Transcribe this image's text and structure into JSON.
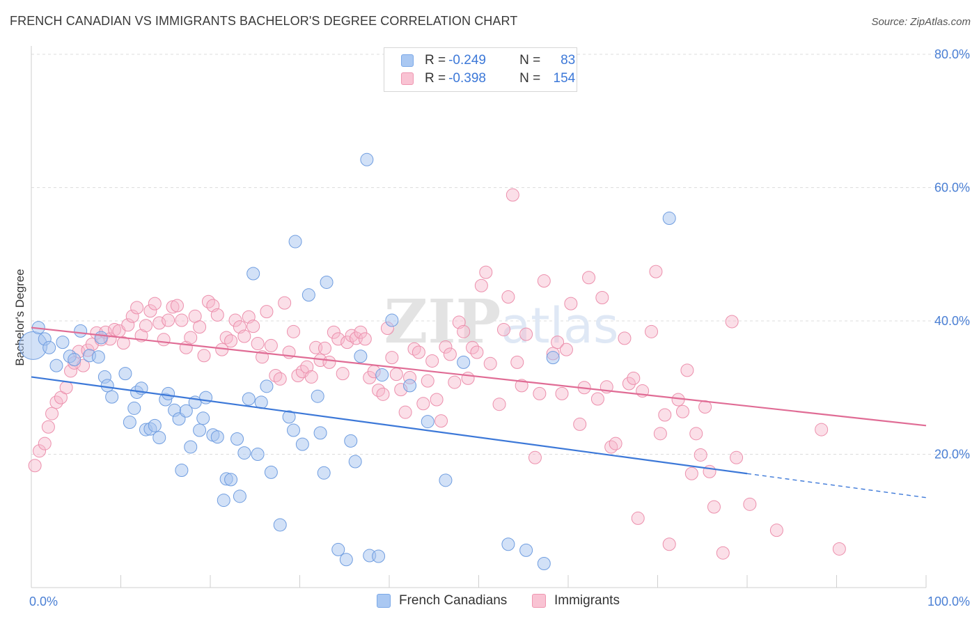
{
  "title": "FRENCH CANADIAN VS IMMIGRANTS BACHELOR'S DEGREE CORRELATION CHART",
  "source": "Source: ZipAtlas.com",
  "watermark": "ZIPatlas",
  "legend": {
    "rows": [
      {
        "r_label": "R =",
        "r_value": "-0.249",
        "n_label": "N =",
        "n_value": "83",
        "color": "#aac8f2",
        "border": "#7aa8e8"
      },
      {
        "r_label": "R =",
        "r_value": "-0.398",
        "n_label": "N =",
        "n_value": "154",
        "color": "#f9c3d3",
        "border": "#ef95b0"
      }
    ]
  },
  "bottom_legend": [
    {
      "label": "French Canadians",
      "color": "#aac8f2",
      "border": "#7aa8e8"
    },
    {
      "label": "Immigrants",
      "color": "#f9c3d3",
      "border": "#ef95b0"
    }
  ],
  "chart_data": {
    "type": "scatter",
    "title": "FRENCH CANADIAN VS IMMIGRANTS BACHELOR'S DEGREE CORRELATION CHART",
    "xlabel": "",
    "ylabel": "Bachelor's Degree",
    "xlim": [
      0,
      100
    ],
    "ylim": [
      0,
      80
    ],
    "x_tick_labels": [
      "0.0%",
      "100.0%"
    ],
    "y_ticks": [
      20,
      40,
      60,
      80
    ],
    "y_tick_labels": [
      "20.0%",
      "40.0%",
      "60.0%",
      "80.0%"
    ],
    "grid": true,
    "colors": {
      "french": "#3c78d8",
      "immigrants": "#e06c95"
    },
    "series": [
      {
        "name": "French Canadians",
        "trend": {
          "x0": 0,
          "y0": 31.6,
          "x1": 80,
          "y1": 17.1,
          "dashed_to_x": 100,
          "dashed_to_y": 13.5
        },
        "points": [
          [
            0.2,
            36.3,
            "L"
          ],
          [
            0.8,
            39.0
          ],
          [
            1.5,
            37.3
          ],
          [
            2.8,
            33.3
          ],
          [
            2.0,
            36.0
          ],
          [
            3.5,
            36.8
          ],
          [
            4.3,
            34.7
          ],
          [
            4.8,
            34.2
          ],
          [
            5.5,
            38.5
          ],
          [
            6.5,
            34.8
          ],
          [
            7.5,
            34.6
          ],
          [
            7.8,
            37.5
          ],
          [
            8.2,
            31.6
          ],
          [
            8.5,
            30.3
          ],
          [
            9.0,
            28.6
          ],
          [
            10.5,
            32.1
          ],
          [
            11.0,
            24.8
          ],
          [
            11.5,
            26.9
          ],
          [
            11.8,
            29.3
          ],
          [
            12.3,
            29.9
          ],
          [
            12.8,
            23.7
          ],
          [
            13.3,
            23.8
          ],
          [
            13.8,
            24.3
          ],
          [
            14.3,
            22.5
          ],
          [
            15.0,
            28.2
          ],
          [
            15.3,
            29.1
          ],
          [
            16.0,
            26.6
          ],
          [
            16.5,
            25.3
          ],
          [
            16.8,
            17.6
          ],
          [
            17.3,
            26.5
          ],
          [
            17.8,
            21.1
          ],
          [
            18.3,
            27.8
          ],
          [
            18.8,
            23.6
          ],
          [
            19.2,
            25.4
          ],
          [
            19.5,
            28.5
          ],
          [
            20.3,
            22.9
          ],
          [
            20.8,
            22.6
          ],
          [
            21.5,
            13.1
          ],
          [
            21.8,
            16.3
          ],
          [
            22.3,
            16.2
          ],
          [
            23.0,
            22.3
          ],
          [
            23.3,
            13.7
          ],
          [
            23.8,
            20.2
          ],
          [
            24.3,
            28.3
          ],
          [
            24.8,
            47.1
          ],
          [
            25.3,
            20.0
          ],
          [
            25.7,
            27.8
          ],
          [
            26.3,
            30.2
          ],
          [
            26.8,
            17.3
          ],
          [
            27.8,
            9.4
          ],
          [
            28.8,
            25.6
          ],
          [
            29.3,
            23.6
          ],
          [
            29.5,
            51.9
          ],
          [
            30.3,
            21.5
          ],
          [
            31.0,
            43.9
          ],
          [
            32.0,
            28.7
          ],
          [
            32.3,
            23.2
          ],
          [
            32.7,
            17.2
          ],
          [
            33.0,
            45.8
          ],
          [
            34.3,
            5.7
          ],
          [
            35.2,
            4.2
          ],
          [
            35.7,
            22.0
          ],
          [
            36.2,
            18.9
          ],
          [
            36.8,
            34.7
          ],
          [
            37.5,
            64.2
          ],
          [
            37.8,
            4.8
          ],
          [
            38.8,
            4.7
          ],
          [
            39.2,
            31.9
          ],
          [
            40.3,
            40.1
          ],
          [
            42.3,
            30.3
          ],
          [
            44.3,
            24.9
          ],
          [
            46.3,
            16.1
          ],
          [
            48.3,
            33.8
          ],
          [
            53.3,
            6.5
          ],
          [
            55.3,
            5.6
          ],
          [
            57.3,
            3.6
          ],
          [
            58.3,
            34.5
          ],
          [
            71.3,
            55.4
          ]
        ]
      },
      {
        "name": "Immigrants",
        "trend": {
          "x0": 0,
          "y0": 39.0,
          "x1": 100,
          "y1": 24.3
        },
        "points": [
          [
            0.4,
            18.3
          ],
          [
            0.9,
            20.5
          ],
          [
            1.5,
            21.6
          ],
          [
            1.9,
            24.1
          ],
          [
            2.3,
            26.1
          ],
          [
            2.8,
            27.8
          ],
          [
            3.3,
            28.5
          ],
          [
            3.9,
            30.0
          ],
          [
            4.4,
            32.5
          ],
          [
            4.8,
            33.7
          ],
          [
            5.3,
            35.4
          ],
          [
            5.8,
            33.3
          ],
          [
            6.3,
            35.6
          ],
          [
            6.8,
            36.5
          ],
          [
            7.3,
            38.2
          ],
          [
            7.8,
            37.2
          ],
          [
            8.3,
            38.3
          ],
          [
            8.8,
            37.3
          ],
          [
            9.3,
            38.7
          ],
          [
            9.8,
            38.5
          ],
          [
            10.3,
            36.7
          ],
          [
            10.8,
            39.4
          ],
          [
            11.3,
            40.7
          ],
          [
            11.8,
            42.0
          ],
          [
            12.3,
            37.8
          ],
          [
            12.8,
            39.3
          ],
          [
            13.3,
            41.5
          ],
          [
            13.8,
            42.6
          ],
          [
            14.3,
            39.7
          ],
          [
            14.8,
            37.2
          ],
          [
            15.3,
            40.1
          ],
          [
            15.8,
            42.1
          ],
          [
            16.3,
            42.3
          ],
          [
            16.8,
            40.1
          ],
          [
            17.3,
            36.0
          ],
          [
            17.8,
            37.5
          ],
          [
            18.3,
            40.7
          ],
          [
            18.8,
            39.1
          ],
          [
            19.3,
            34.8
          ],
          [
            19.8,
            42.9
          ],
          [
            20.3,
            42.3
          ],
          [
            20.8,
            40.9
          ],
          [
            21.3,
            35.7
          ],
          [
            21.8,
            37.5
          ],
          [
            22.3,
            37.0
          ],
          [
            22.8,
            40.1
          ],
          [
            23.3,
            39.1
          ],
          [
            23.8,
            37.7
          ],
          [
            24.3,
            40.6
          ],
          [
            24.8,
            39.2
          ],
          [
            25.3,
            36.6
          ],
          [
            25.8,
            34.6
          ],
          [
            26.3,
            41.4
          ],
          [
            26.8,
            36.3
          ],
          [
            27.3,
            31.8
          ],
          [
            27.8,
            31.3
          ],
          [
            28.3,
            42.7
          ],
          [
            28.8,
            35.3
          ],
          [
            29.3,
            38.4
          ],
          [
            29.8,
            31.8
          ],
          [
            30.3,
            32.4
          ],
          [
            30.8,
            33.1
          ],
          [
            31.3,
            31.6
          ],
          [
            31.8,
            36.0
          ],
          [
            32.3,
            34.1
          ],
          [
            32.8,
            35.9
          ],
          [
            33.3,
            33.8
          ],
          [
            33.8,
            38.3
          ],
          [
            34.3,
            37.3
          ],
          [
            34.8,
            32.1
          ],
          [
            35.3,
            36.8
          ],
          [
            35.8,
            37.8
          ],
          [
            36.3,
            37.4
          ],
          [
            36.8,
            38.3
          ],
          [
            37.3,
            37.3
          ],
          [
            37.8,
            31.5
          ],
          [
            38.3,
            32.4
          ],
          [
            38.8,
            29.6
          ],
          [
            39.3,
            29.0
          ],
          [
            39.8,
            38.9
          ],
          [
            40.3,
            34.5
          ],
          [
            40.8,
            32.0
          ],
          [
            41.3,
            29.7
          ],
          [
            41.8,
            26.3
          ],
          [
            42.3,
            31.5
          ],
          [
            42.8,
            35.8
          ],
          [
            43.3,
            35.3
          ],
          [
            43.8,
            27.6
          ],
          [
            44.3,
            31.0
          ],
          [
            44.8,
            34.0
          ],
          [
            45.3,
            28.2
          ],
          [
            45.8,
            25.0
          ],
          [
            46.3,
            36.1
          ],
          [
            46.8,
            35.0
          ],
          [
            47.3,
            30.8
          ],
          [
            47.8,
            39.8
          ],
          [
            48.3,
            38.4
          ],
          [
            48.8,
            31.4
          ],
          [
            49.3,
            36.0
          ],
          [
            49.8,
            35.3
          ],
          [
            50.3,
            45.3
          ],
          [
            50.8,
            47.3
          ],
          [
            51.3,
            33.6
          ],
          [
            52.3,
            27.5
          ],
          [
            52.8,
            38.7
          ],
          [
            53.3,
            43.6
          ],
          [
            53.8,
            58.9
          ],
          [
            54.3,
            33.8
          ],
          [
            54.8,
            30.3
          ],
          [
            55.3,
            38.0
          ],
          [
            56.3,
            19.5
          ],
          [
            56.8,
            29.1
          ],
          [
            57.3,
            46.0
          ],
          [
            58.3,
            35.1
          ],
          [
            58.8,
            36.8
          ],
          [
            59.3,
            29.1
          ],
          [
            59.8,
            35.7
          ],
          [
            60.3,
            42.6
          ],
          [
            61.3,
            24.5
          ],
          [
            61.8,
            30.0
          ],
          [
            62.3,
            46.5
          ],
          [
            63.3,
            28.3
          ],
          [
            63.8,
            43.5
          ],
          [
            64.3,
            30.1
          ],
          [
            64.8,
            21.1
          ],
          [
            65.3,
            21.6
          ],
          [
            66.3,
            37.4
          ],
          [
            66.8,
            30.6
          ],
          [
            67.3,
            31.4
          ],
          [
            67.8,
            10.4
          ],
          [
            68.3,
            29.5
          ],
          [
            69.3,
            38.4
          ],
          [
            69.8,
            47.4
          ],
          [
            70.3,
            23.1
          ],
          [
            70.8,
            25.9
          ],
          [
            71.3,
            6.5
          ],
          [
            72.3,
            28.2
          ],
          [
            72.8,
            26.4
          ],
          [
            73.3,
            32.6
          ],
          [
            73.8,
            17.1
          ],
          [
            74.3,
            23.1
          ],
          [
            74.8,
            19.9
          ],
          [
            75.3,
            27.1
          ],
          [
            75.8,
            17.4
          ],
          [
            76.3,
            12.1
          ],
          [
            77.3,
            5.2
          ],
          [
            78.3,
            39.9
          ],
          [
            78.8,
            19.5
          ],
          [
            80.3,
            12.5
          ],
          [
            83.3,
            8.6
          ],
          [
            88.3,
            23.7
          ],
          [
            90.3,
            5.8
          ]
        ]
      }
    ]
  }
}
